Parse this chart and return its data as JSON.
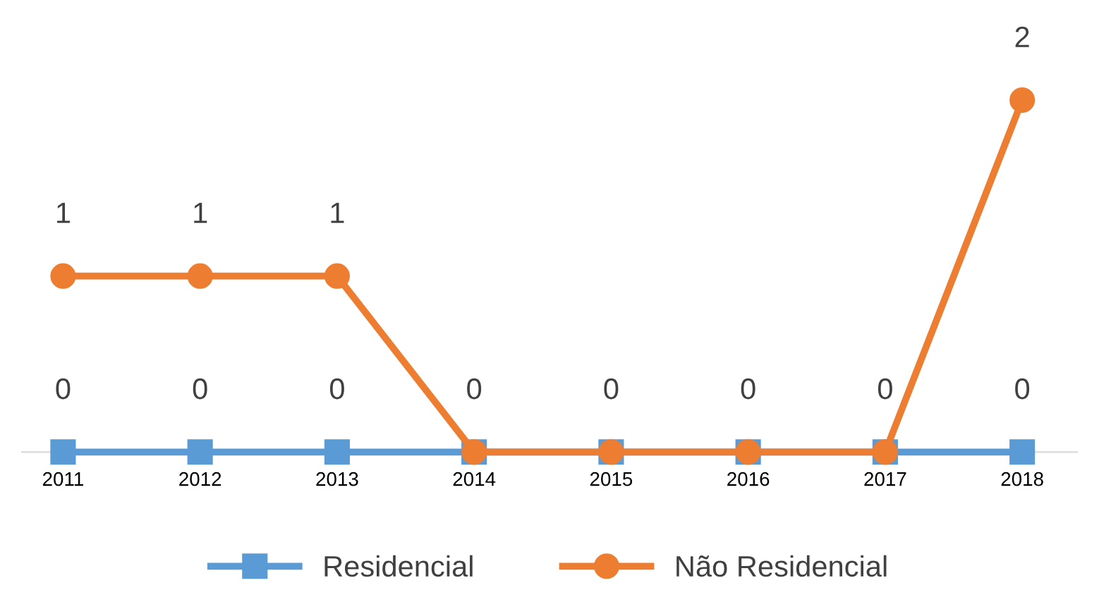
{
  "chart_data": {
    "type": "line",
    "categories": [
      "2011",
      "2012",
      "2013",
      "2014",
      "2015",
      "2016",
      "2017",
      "2018"
    ],
    "series": [
      {
        "name": "Residencial",
        "color": "#5b9bd5",
        "marker": "square",
        "values": [
          0,
          0,
          0,
          0,
          0,
          0,
          0,
          0
        ],
        "value_labels": [
          "0",
          "0",
          "0",
          "0",
          "0",
          "0",
          "0",
          "0"
        ]
      },
      {
        "name": "Não Residencial",
        "color": "#ed7d31",
        "marker": "circle",
        "values": [
          1,
          1,
          1,
          0,
          0,
          0,
          0,
          2
        ],
        "value_labels": [
          "1",
          "1",
          "1",
          null,
          null,
          null,
          null,
          "2"
        ]
      }
    ],
    "grid": false,
    "legend": "bottom",
    "line_style": "solid"
  }
}
